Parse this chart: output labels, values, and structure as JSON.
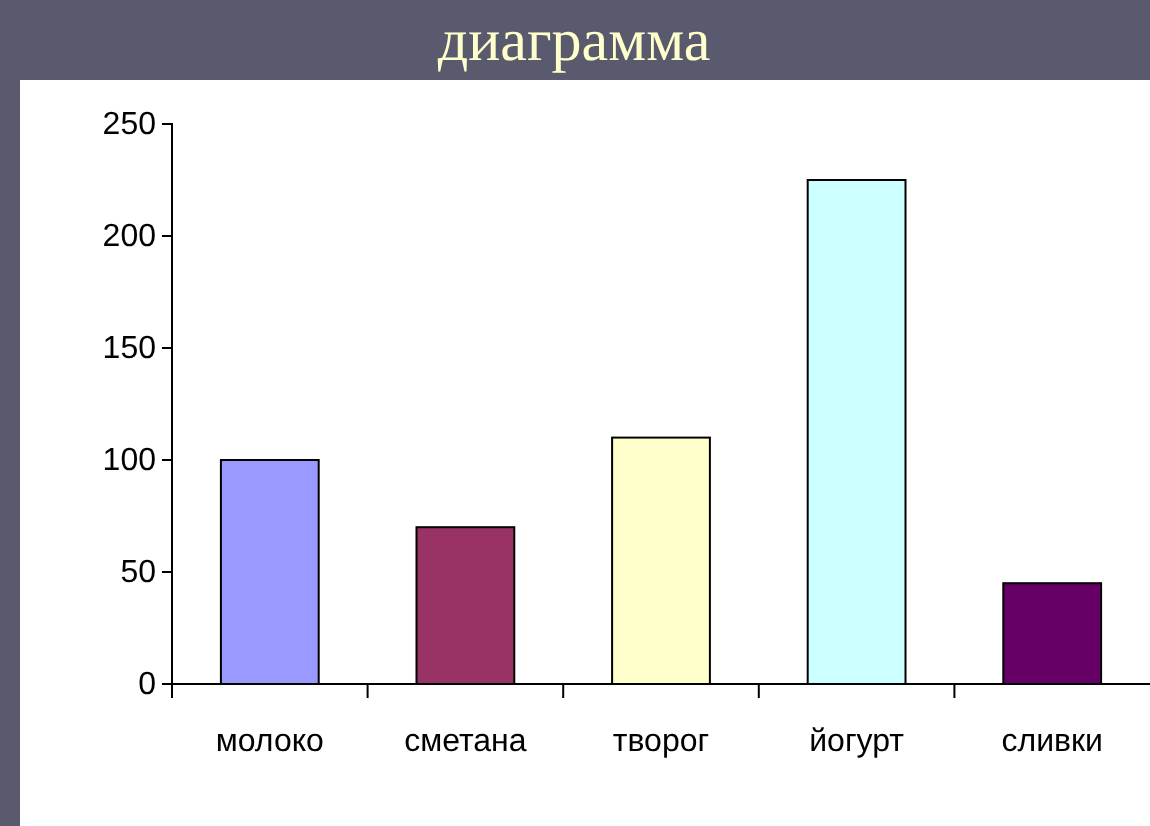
{
  "chart_data": {
    "type": "bar",
    "title": "диаграмма",
    "categories": [
      "молоко",
      "сметана",
      "творог",
      "йогурт",
      "сливки"
    ],
    "values": [
      100,
      70,
      110,
      225,
      45
    ],
    "colors": [
      "#9999ff",
      "#993366",
      "#ffffcc",
      "#ccffff",
      "#660066"
    ],
    "ylim": [
      0,
      250
    ],
    "yticks": [
      0,
      50,
      100,
      150,
      200,
      250
    ],
    "grid": false,
    "legend": false
  }
}
